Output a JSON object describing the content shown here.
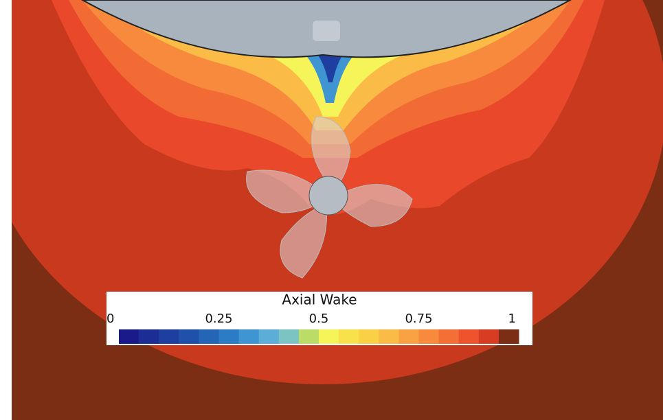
{
  "colorbar": {
    "title": "Axial Wake",
    "range": [
      0,
      1
    ],
    "ticks": [
      0,
      0.25,
      0.5,
      0.75,
      1
    ],
    "colors": [
      "#1b1a8a",
      "#1c2d95",
      "#1e3f9f",
      "#2051aa",
      "#2465b6",
      "#2b7cc5",
      "#3e95d2",
      "#5cadd8",
      "#7cc3c3",
      "#bcdc68",
      "#f5f458",
      "#f8e24b",
      "#fad047",
      "#fbbb47",
      "#f8a243",
      "#f78a3c",
      "#f46f35",
      "#ee532d",
      "#d83d23",
      "#7b2e13"
    ]
  }
}
